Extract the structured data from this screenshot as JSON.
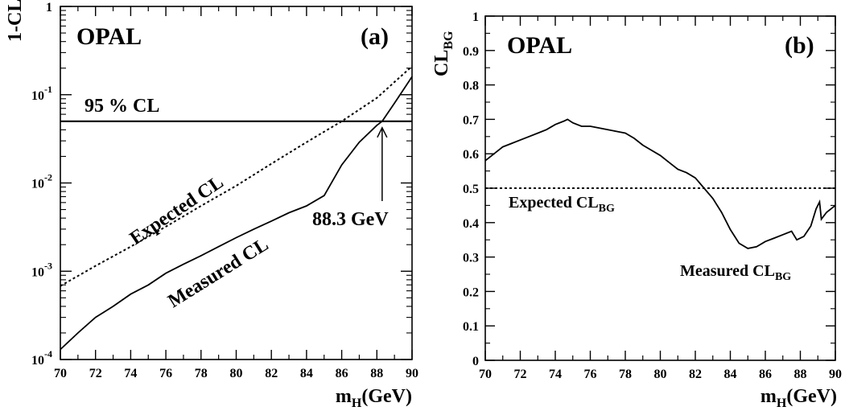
{
  "chart_data": [
    {
      "type": "line",
      "panel_label": "(a)",
      "experiment": "OPAL",
      "ylabel": "1-CL",
      "xlabel": "m",
      "xlabel_sub": "H",
      "xlabel_unit": "(GeV)",
      "y_scale": "log",
      "xlim": [
        70,
        90
      ],
      "ylim": [
        0.0001,
        1
      ],
      "x_ticks": [
        "70",
        "72",
        "74",
        "76",
        "78",
        "80",
        "82",
        "84",
        "86",
        "88",
        "90"
      ],
      "y_ticks": [
        {
          "base": "10",
          "exp": "-4",
          "value": 0.0001
        },
        {
          "base": "10",
          "exp": "-3",
          "value": 0.001
        },
        {
          "base": "10",
          "exp": "-2",
          "value": 0.01
        },
        {
          "base": "10",
          "exp": "-1",
          "value": 0.1
        },
        {
          "base": "1",
          "exp": "",
          "value": 1
        }
      ],
      "reference_line": {
        "label": "95 % CL",
        "y": 0.05
      },
      "annotation": {
        "text": "88.3 GeV",
        "x": 88.3
      },
      "series": [
        {
          "name": "Expected CL",
          "style": "dotted",
          "x": [
            70,
            72,
            74,
            76,
            78,
            80,
            82,
            84,
            86,
            88,
            90
          ],
          "y": [
            0.00068,
            0.00115,
            0.0019,
            0.0032,
            0.0055,
            0.0093,
            0.0165,
            0.029,
            0.05,
            0.092,
            0.21
          ]
        },
        {
          "name": "Measured CL",
          "style": "solid",
          "x": [
            70,
            71,
            72,
            73,
            74,
            75,
            76,
            77,
            78,
            79,
            80,
            81,
            82,
            83,
            84,
            85,
            86,
            87,
            88,
            88.3,
            89,
            90
          ],
          "y": [
            0.00013,
            0.0002,
            0.0003,
            0.0004,
            0.00055,
            0.0007,
            0.00095,
            0.0012,
            0.0015,
            0.0019,
            0.0024,
            0.003,
            0.0037,
            0.0046,
            0.0055,
            0.0072,
            0.016,
            0.029,
            0.045,
            0.05,
            0.08,
            0.16
          ]
        }
      ]
    },
    {
      "type": "line",
      "panel_label": "(b)",
      "experiment": "OPAL",
      "ylabel": "CL",
      "ylabel_sub": "BG",
      "xlabel": "m",
      "xlabel_sub": "H",
      "xlabel_unit": "(GeV)",
      "xlim": [
        70,
        90
      ],
      "ylim": [
        0,
        1
      ],
      "x_ticks": [
        "70",
        "72",
        "74",
        "76",
        "78",
        "80",
        "82",
        "84",
        "86",
        "88",
        "90"
      ],
      "y_ticks": [
        "0",
        "0.1",
        "0.2",
        "0.3",
        "0.4",
        "0.5",
        "0.6",
        "0.7",
        "0.8",
        "0.9",
        "1"
      ],
      "series": [
        {
          "name": "Expected CL",
          "name_sub": "BG",
          "style": "dotted",
          "x": [
            70,
            90
          ],
          "y": [
            0.5,
            0.5
          ]
        },
        {
          "name": "Measured CL",
          "name_sub": "BG",
          "style": "solid",
          "x": [
            70,
            70.5,
            71,
            71.5,
            72,
            72.5,
            73,
            73.5,
            74,
            74.5,
            74.7,
            75,
            75.5,
            76,
            76.5,
            77,
            77.5,
            78,
            78.5,
            79,
            79.5,
            80,
            80.5,
            81,
            81.5,
            82,
            82.5,
            83,
            83.5,
            84,
            84.5,
            85,
            85.5,
            86,
            86.5,
            87,
            87.5,
            87.8,
            88.2,
            88.6,
            88.9,
            89.1,
            89.2,
            89.5,
            90
          ],
          "y": [
            0.58,
            0.6,
            0.62,
            0.63,
            0.64,
            0.65,
            0.66,
            0.67,
            0.685,
            0.695,
            0.7,
            0.69,
            0.68,
            0.68,
            0.675,
            0.67,
            0.665,
            0.66,
            0.645,
            0.625,
            0.61,
            0.595,
            0.575,
            0.555,
            0.545,
            0.53,
            0.5,
            0.47,
            0.43,
            0.38,
            0.34,
            0.325,
            0.33,
            0.345,
            0.355,
            0.365,
            0.375,
            0.35,
            0.36,
            0.39,
            0.44,
            0.46,
            0.41,
            0.43,
            0.45
          ]
        }
      ]
    }
  ]
}
